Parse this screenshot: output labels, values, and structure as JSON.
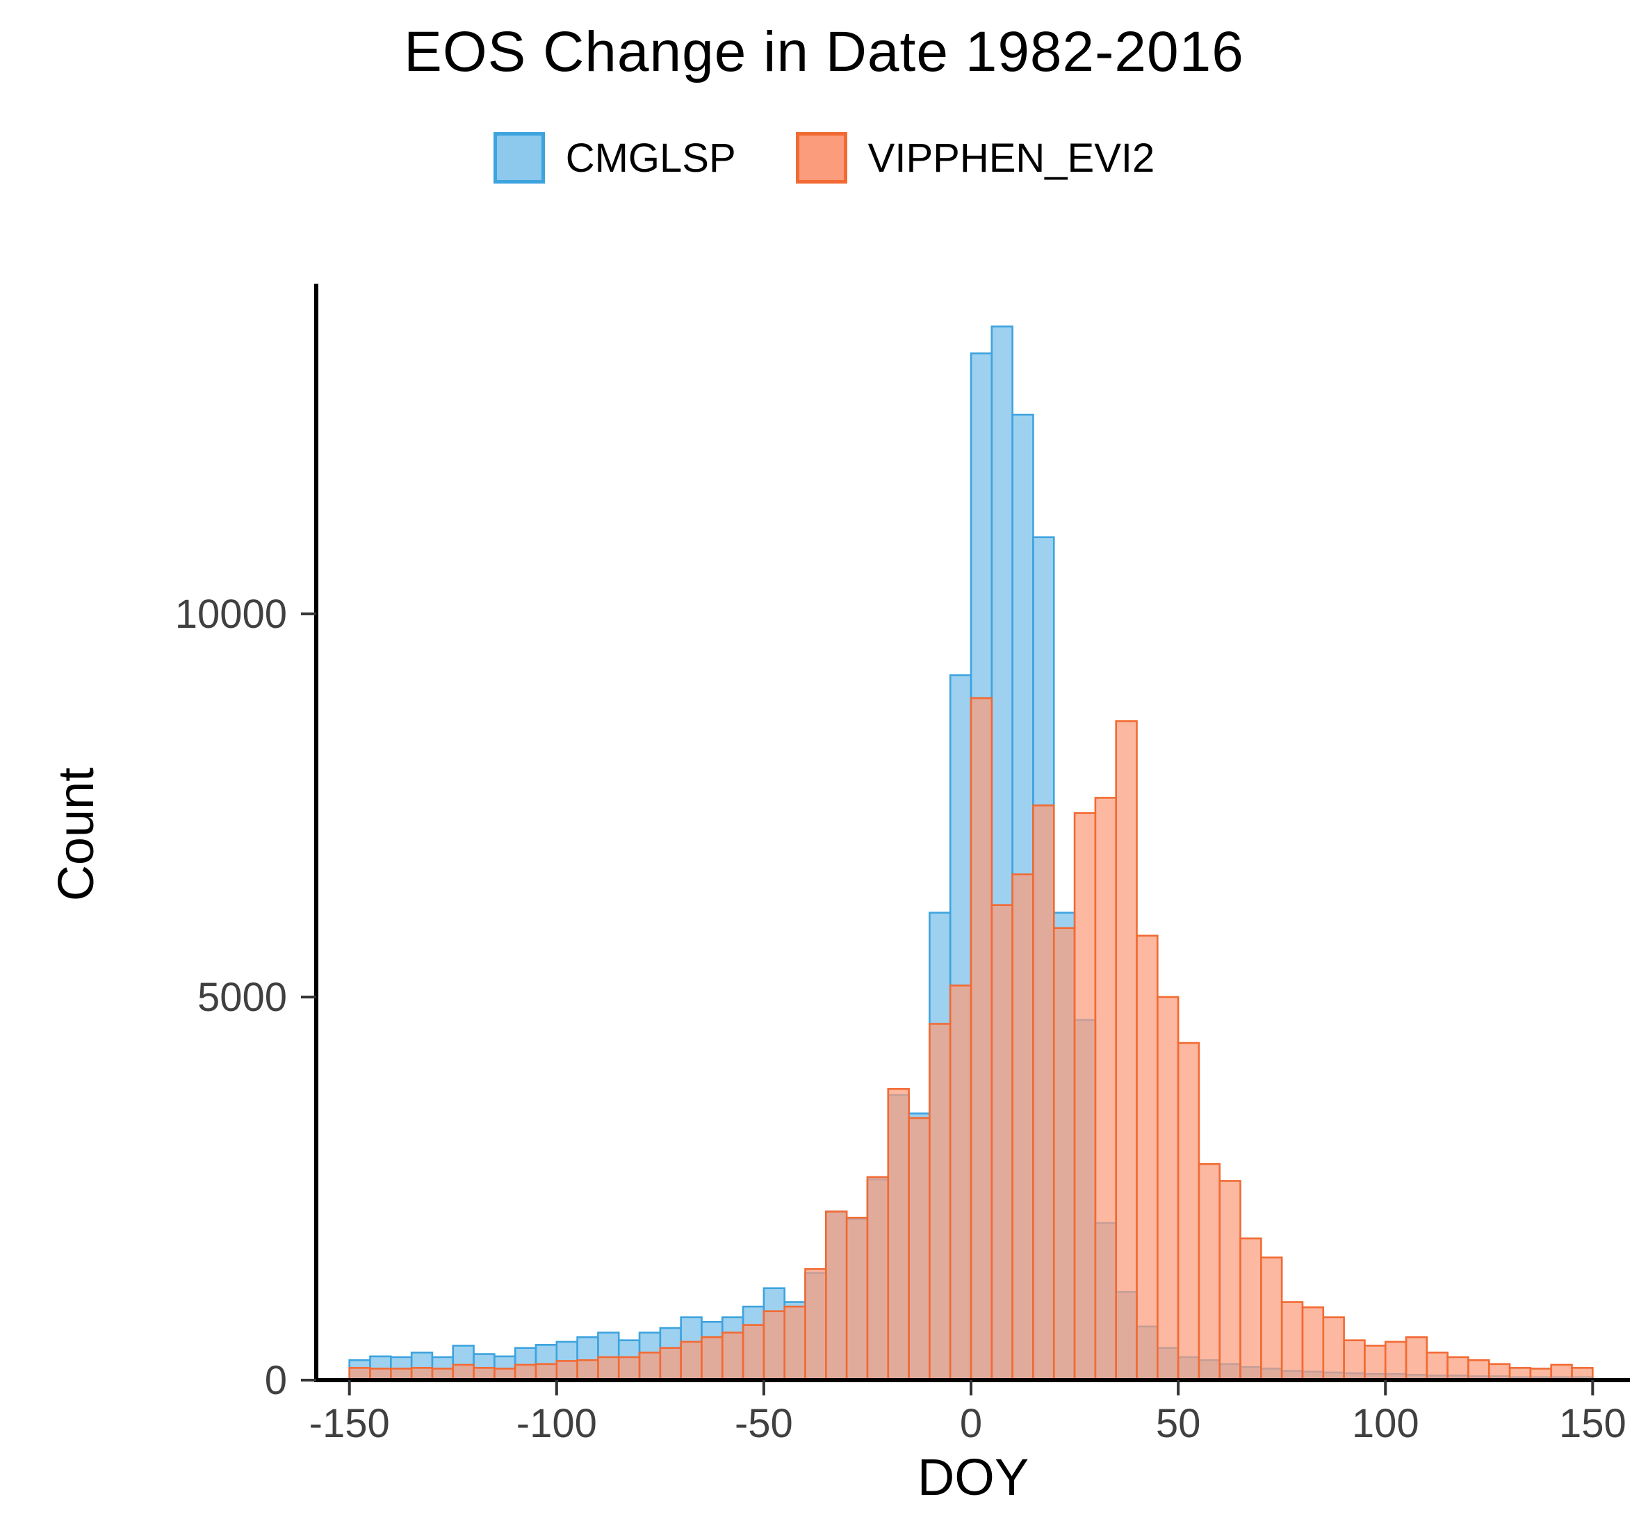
{
  "chart_data": {
    "type": "bar",
    "subtype": "overlaid-histogram",
    "title": "EOS Change in Date 1982-2016",
    "xlabel": "DOY",
    "ylabel": "Count",
    "xlim": [
      -158,
      159
    ],
    "ylim": [
      0,
      14200
    ],
    "x_ticks": [
      -150,
      -100,
      -50,
      0,
      50,
      100,
      150
    ],
    "y_ticks": [
      0,
      5000,
      10000
    ],
    "bin_width": 5,
    "bin_start": -150,
    "grid": false,
    "legend_position": "top-center",
    "series": [
      {
        "name": "CMGLSP",
        "fill": "#8CC9EC",
        "border": "#3EA3DE",
        "opacity": 0.85,
        "values": [
          260,
          310,
          300,
          360,
          300,
          450,
          340,
          310,
          420,
          460,
          500,
          560,
          620,
          520,
          620,
          680,
          820,
          760,
          820,
          960,
          1200,
          1020,
          1400,
          2200,
          2100,
          2620,
          3720,
          3480,
          6100,
          9200,
          13400,
          13750,
          12600,
          11000,
          6100,
          4700,
          2050,
          1150,
          700,
          420,
          300,
          260,
          210,
          170,
          150,
          120,
          110,
          100,
          90,
          80,
          80,
          70,
          60,
          60,
          50,
          50,
          40,
          40,
          40,
          40
        ]
      },
      {
        "name": "VIPPHEN_EVI2",
        "fill": "#FB9C7C",
        "border": "#F26A33",
        "opacity": 0.72,
        "values": [
          160,
          150,
          150,
          160,
          150,
          200,
          160,
          150,
          200,
          210,
          250,
          260,
          300,
          300,
          360,
          420,
          500,
          560,
          620,
          720,
          900,
          960,
          1450,
          2200,
          2120,
          2650,
          3800,
          3420,
          4650,
          5150,
          8900,
          6200,
          6600,
          7500,
          5900,
          7400,
          7600,
          8600,
          5800,
          5000,
          4400,
          2820,
          2600,
          1850,
          1600,
          1020,
          950,
          820,
          520,
          450,
          500,
          560,
          360,
          300,
          260,
          210,
          160,
          150,
          200,
          160
        ]
      }
    ],
    "axis_color": "#000000",
    "tick_label_color": "#404040"
  }
}
